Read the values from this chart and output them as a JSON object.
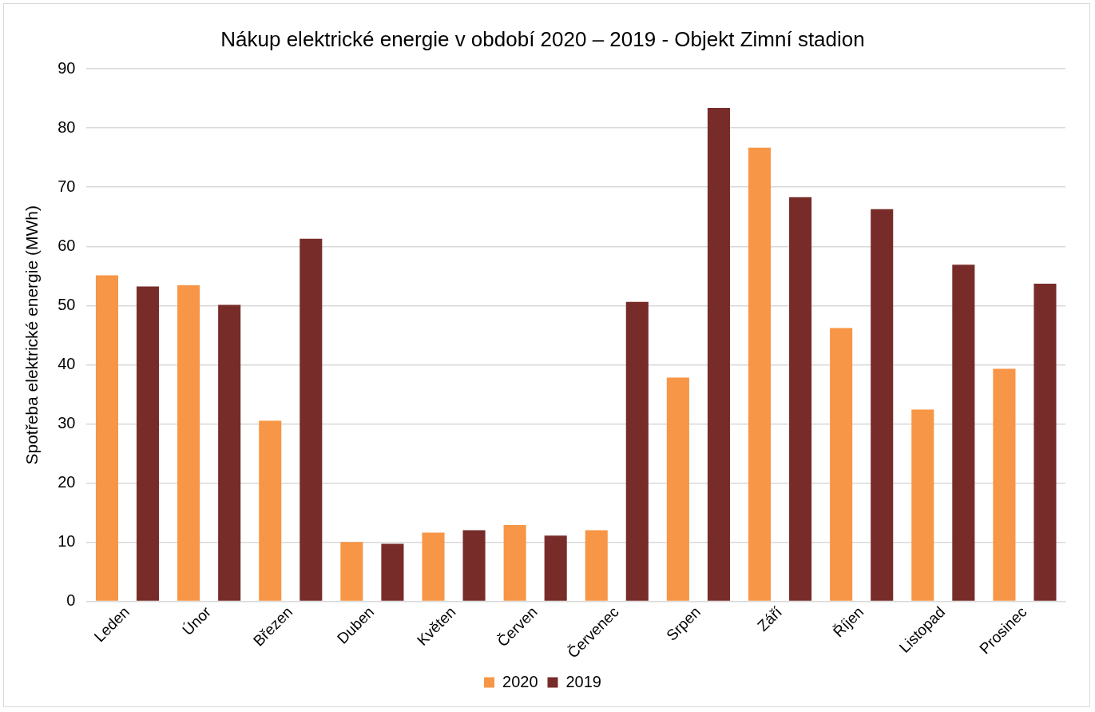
{
  "chart_data": {
    "type": "bar",
    "title": "Nákup elektrické energie v období 2020 – 2019 - Objekt Zimní stadion",
    "ylabel": "Spotřeba elektrické energie (MWh)",
    "categories": [
      "Leden",
      "Únor",
      "Březen",
      "Duben",
      "Květen",
      "Červen",
      "Červenec",
      "Srpen",
      "Září",
      "Říjen",
      "Listopad",
      "Prosinec"
    ],
    "series": [
      {
        "name": "2020",
        "color": "#f79646",
        "values": [
          55.1,
          53.4,
          30.5,
          10.0,
          11.6,
          12.9,
          12.0,
          37.8,
          76.7,
          46.2,
          32.4,
          39.3
        ]
      },
      {
        "name": "2019",
        "color": "#772c2a",
        "values": [
          53.2,
          50.1,
          61.3,
          9.7,
          12.0,
          11.1,
          50.6,
          83.4,
          68.3,
          66.3,
          56.9,
          53.7
        ]
      }
    ],
    "ylim": [
      0,
      90
    ],
    "yticks": [
      0,
      10,
      20,
      30,
      40,
      50,
      60,
      70,
      80,
      90
    ],
    "grid": "y",
    "legend": "bottom"
  }
}
